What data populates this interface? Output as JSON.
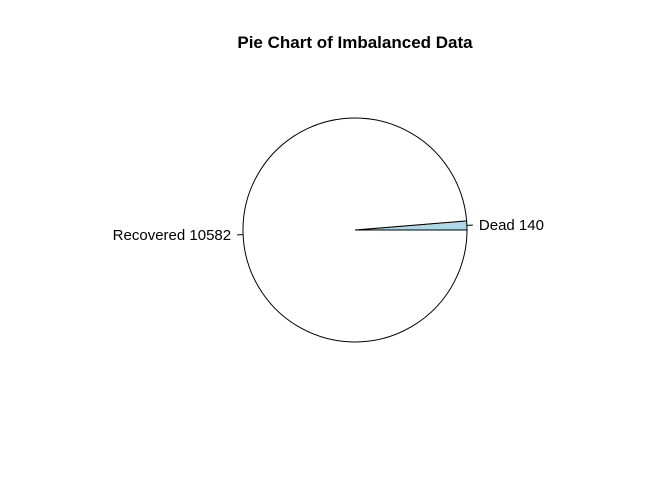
{
  "chart_data": {
    "type": "pie",
    "title": "Pie Chart of Imbalanced Data",
    "slices": [
      {
        "label": "Dead",
        "value": 140,
        "display": "Dead 140",
        "color": "#add8e6"
      },
      {
        "label": "Recovered",
        "value": 10582,
        "display": "Recovered 10582",
        "color": "#ffffff"
      }
    ],
    "start_angle_deg": 0,
    "direction": "counterclockwise",
    "border_color": "#000000"
  }
}
